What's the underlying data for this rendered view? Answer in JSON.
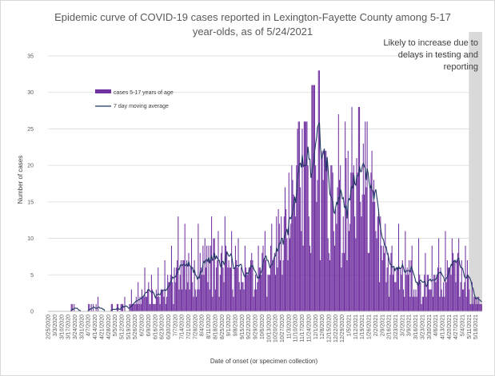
{
  "chart_data": {
    "type": "bar",
    "title_lines": [
      "Epidemic curve of COVID-19 cases reported in Lexington-Fayette County among 5-17",
      "year-olds, as of 5/24/2021"
    ],
    "xlabel": "Date of onset (or specimen collection)",
    "ylabel": "Number of cases",
    "ylim": [
      0,
      35
    ],
    "yticks": [
      0,
      5,
      10,
      15,
      20,
      25,
      30,
      35
    ],
    "grid": true,
    "legend_position": "upper-left",
    "start_date": "2020-02-25",
    "end_date": "2021-05-24",
    "xtick_labels": [
      "2/25/2020",
      "3/3/2020",
      "3/10/2020",
      "3/17/2020",
      "3/24/2020",
      "3/31/2020",
      "4/7/2020",
      "4/14/2020",
      "4/21/2020",
      "4/28/2020",
      "5/5/2020",
      "5/12/2020",
      "5/19/2020",
      "5/26/2020",
      "6/2/2020",
      "6/9/2020",
      "6/16/2020",
      "6/23/2020",
      "6/30/2020",
      "7/7/2020",
      "7/14/2020",
      "7/21/2020",
      "7/28/2020",
      "8/4/2020",
      "8/11/2020",
      "8/18/2020",
      "8/25/2020",
      "9/1/2020",
      "9/8/2020",
      "9/15/2020",
      "9/22/2020",
      "9/29/2020",
      "10/6/2020",
      "10/13/2020",
      "10/20/2020",
      "10/27/2020",
      "11/3/2020",
      "11/10/2020",
      "11/17/2020",
      "11/24/2020",
      "12/1/2020",
      "12/8/2020",
      "12/15/2020",
      "12/22/2020",
      "12/29/2020",
      "1/5/2021",
      "1/12/2021",
      "1/19/2021",
      "1/26/2021",
      "2/2/2021",
      "2/9/2021",
      "2/16/2021",
      "2/23/2021",
      "3/2/2021",
      "3/9/2021",
      "3/16/2021",
      "3/23/2021",
      "3/30/2021",
      "4/6/2021",
      "4/13/2021",
      "4/20/2021",
      "4/27/2021",
      "5/4/2021",
      "5/11/2021",
      "5/18/2021"
    ],
    "series": [
      {
        "name": "cases 5-17 years of age",
        "type": "bar",
        "color": "#7030a0",
        "weekly_typical": [
          0,
          0,
          0,
          0.3,
          0,
          0,
          0.3,
          0.4,
          0,
          0.3,
          0.2,
          0.5,
          0.8,
          1.5,
          2,
          2.3,
          2.5,
          3,
          4,
          5,
          6,
          5.5,
          5.5,
          6,
          6,
          5.5,
          6.5,
          6,
          5.5,
          5,
          4.5,
          4.5,
          6,
          7,
          8,
          9,
          12,
          17,
          24,
          22,
          20,
          14,
          12,
          14,
          16,
          18,
          19,
          19,
          15,
          9,
          6,
          5,
          5,
          4.5,
          4,
          3.5,
          3.5,
          4,
          4,
          4.5,
          5,
          5,
          4.5,
          2,
          1.2
        ],
        "weekly_peak": [
          0,
          0,
          0,
          1,
          0,
          0,
          1,
          2,
          0,
          1,
          1,
          2,
          3,
          4,
          6,
          5,
          6,
          7,
          9,
          13,
          12,
          10,
          12,
          10,
          13,
          11,
          13,
          11,
          10,
          9,
          8,
          9,
          11,
          12,
          14,
          17,
          20,
          26,
          26,
          31,
          33,
          22,
          20,
          27,
          26,
          28,
          28,
          26,
          22,
          14,
          12,
          9,
          12,
          11,
          9,
          10,
          8,
          9,
          10,
          11,
          10,
          10,
          9,
          4,
          2
        ]
      },
      {
        "name": "7 day moving average",
        "type": "line",
        "color": "#1f3864",
        "weekly_values": [
          0,
          0,
          0,
          0.3,
          0,
          0,
          0.3,
          0.4,
          0,
          0.3,
          0.2,
          0.5,
          0.8,
          1.4,
          1.9,
          2.3,
          2.6,
          3,
          4,
          5,
          5.8,
          5.3,
          5.4,
          5.8,
          5.9,
          5.4,
          6.2,
          5.9,
          5.4,
          4.9,
          4.4,
          4.5,
          5.8,
          6.8,
          7.6,
          8.8,
          11.8,
          16.5,
          23.5,
          21,
          19.3,
          13.8,
          11.9,
          14,
          16,
          18.5,
          19,
          19.5,
          15,
          9,
          6,
          5,
          4.8,
          4.5,
          4,
          3.6,
          3.5,
          3.9,
          4,
          4.4,
          5,
          5,
          4.5,
          2.3,
          1.5
        ]
      }
    ],
    "annotation": {
      "lines": [
        "Likely to increase due to",
        "delays in testing and",
        "reporting"
      ],
      "shaded_from": "2021-05-11",
      "shade_color": "#d9d9d9"
    }
  }
}
